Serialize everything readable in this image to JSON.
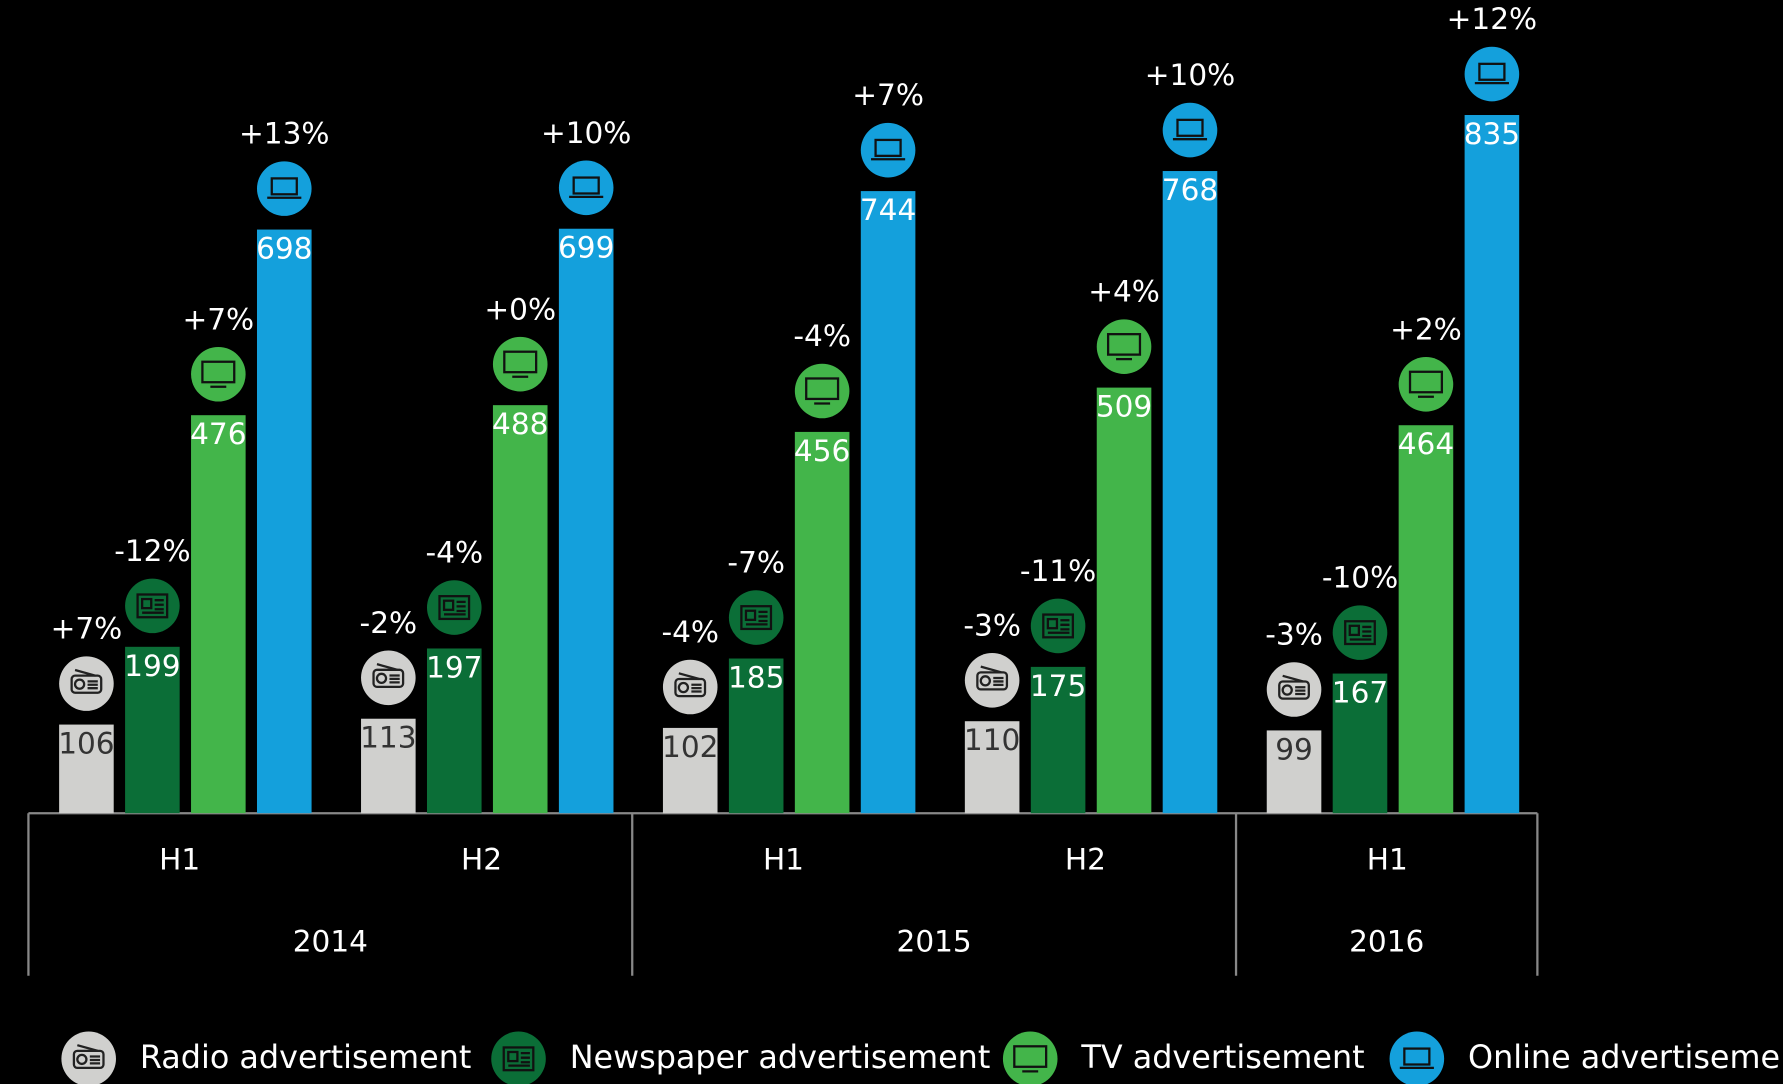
{
  "chart_data": {
    "type": "bar",
    "year_groups": [
      {
        "label": "2014",
        "categories": [
          "H1",
          "H2"
        ]
      },
      {
        "label": "2015",
        "categories": [
          "H1",
          "H2"
        ]
      },
      {
        "label": "2016",
        "categories": [
          "H1"
        ]
      }
    ],
    "series": [
      {
        "name": "Radio advertisement",
        "color": "#d0d0ce",
        "values": [
          106,
          113,
          102,
          110,
          99
        ],
        "changes": [
          "+7%",
          "-2%",
          "-4%",
          "-3%",
          "-3%"
        ]
      },
      {
        "name": "Newspaper advertisement",
        "color": "#0b6e37",
        "values": [
          199,
          197,
          185,
          175,
          167
        ],
        "changes": [
          "-12%",
          "-4%",
          "-7%",
          "-11%",
          "-10%"
        ]
      },
      {
        "name": "TV advertisement",
        "color": "#43b54a",
        "values": [
          476,
          488,
          456,
          509,
          464
        ],
        "changes": [
          "+7%",
          "+0%",
          "-4%",
          "+4%",
          "+2%"
        ]
      },
      {
        "name": "Online advertisement",
        "color": "#14a0dc",
        "values": [
          698,
          699,
          744,
          768,
          835
        ],
        "changes": [
          "+13%",
          "+10%",
          "+7%",
          "+10%",
          "+12%"
        ]
      }
    ]
  }
}
